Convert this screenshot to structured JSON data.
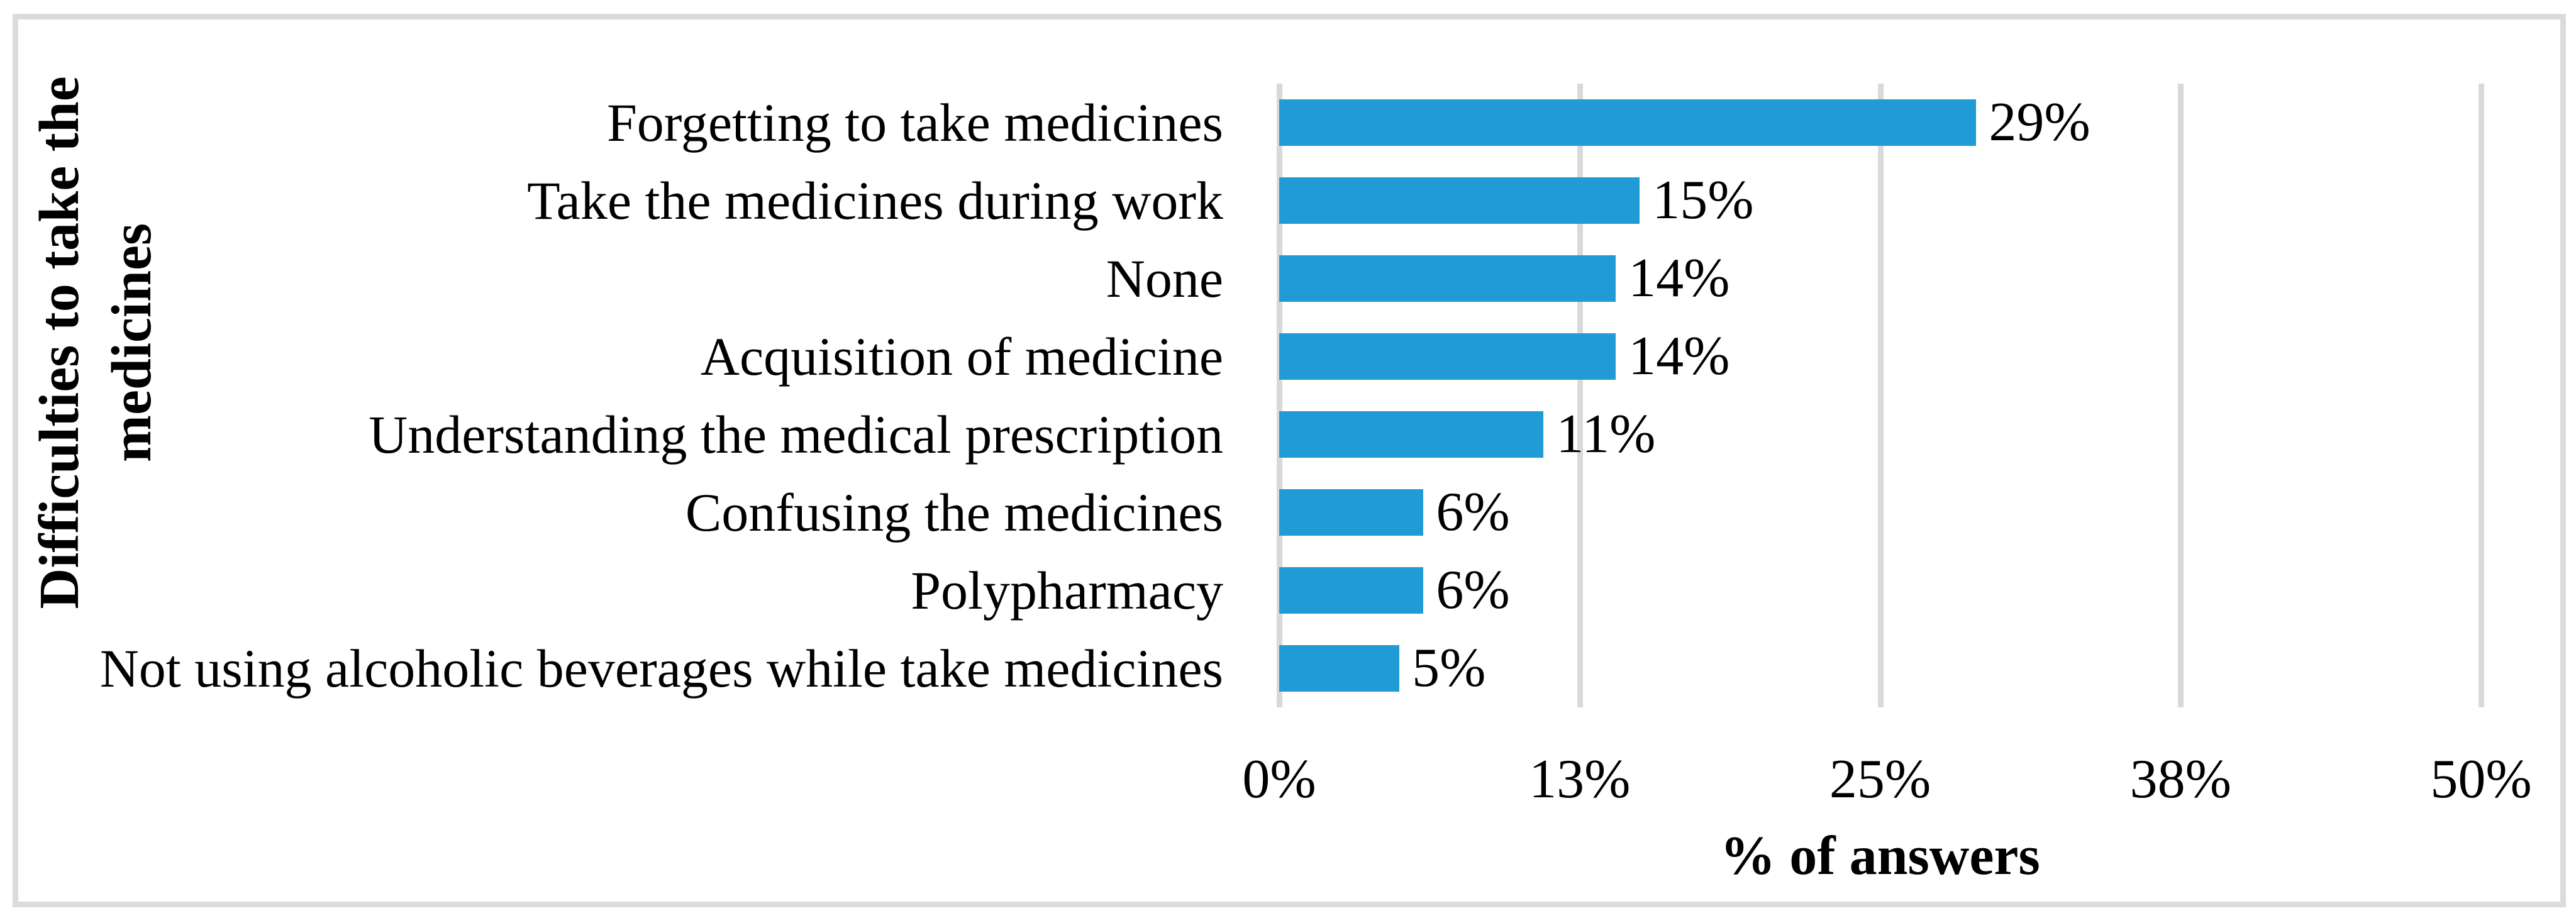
{
  "figure": {
    "background": "#ffffff",
    "border_color": "#dbdbdb"
  },
  "chart_data": {
    "type": "bar",
    "orientation": "horizontal",
    "title": "",
    "categories": [
      "Forgetting to take medicines",
      "Take the medicines during work",
      "None",
      "Acquisition of medicine",
      "Understanding the medical prescription",
      "Confusing the medicines",
      "Polypharmacy",
      "Not using alcoholic beverages while take medicines"
    ],
    "values": [
      29,
      15,
      14,
      14,
      11,
      6,
      6,
      5
    ],
    "labels": [
      "29%",
      "15%",
      "14%",
      "14%",
      "11%",
      "6%",
      "6%",
      "5%"
    ],
    "xlabel": "% of answers",
    "ylabel": "Difficulties to take the medicines",
    "ylabel_lines": [
      "Difficulties to take the",
      "medicines"
    ],
    "x_ticks": [
      "0%",
      "13%",
      "25%",
      "38%",
      "50%"
    ],
    "xlim": [
      0,
      50
    ],
    "grid": true,
    "legend": false,
    "bar_color": "#209bd5",
    "gridline_color": "#d9d9d9"
  }
}
